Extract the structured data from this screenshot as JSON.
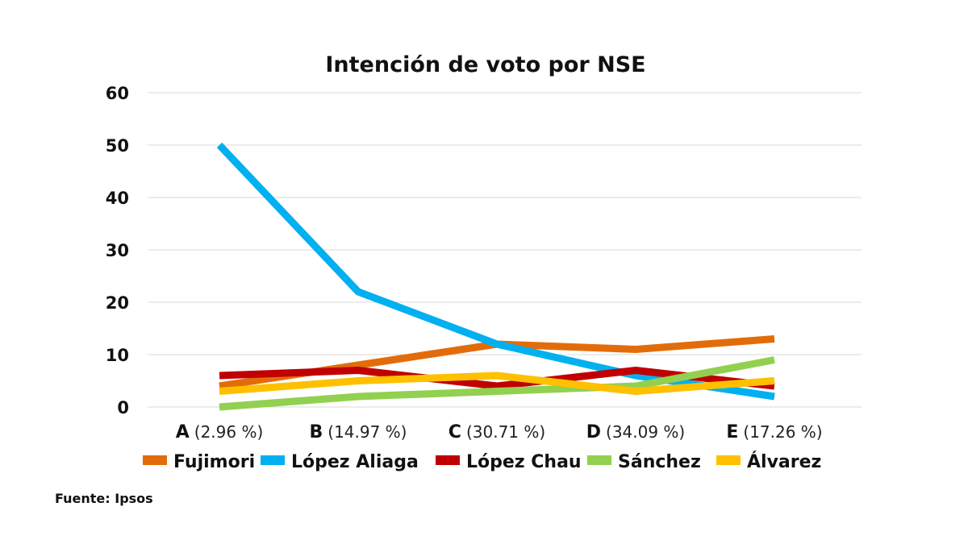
{
  "chart_data": {
    "type": "line",
    "title": "Intención de voto por NSE",
    "categories": [
      {
        "code": "A",
        "share": "(2.96 %)"
      },
      {
        "code": "B",
        "share": "(14.97 %)"
      },
      {
        "code": "C",
        "share": "(30.71 %)"
      },
      {
        "code": "D",
        "share": "(34.09 %)"
      },
      {
        "code": "E",
        "share": "(17.26 %)"
      }
    ],
    "ylim": [
      0,
      60
    ],
    "yticks": [
      "0",
      "10",
      "20",
      "30",
      "40",
      "50",
      "60"
    ],
    "grid": true,
    "legend_position": "bottom",
    "series": [
      {
        "name": "Fujimori",
        "color": "#E36C0A",
        "values": [
          4,
          8,
          12,
          11,
          13
        ]
      },
      {
        "name": "López Aliaga",
        "color": "#00B0F0",
        "values": [
          50,
          22,
          12,
          6,
          2
        ]
      },
      {
        "name": "López Chau",
        "color": "#C00000",
        "values": [
          6,
          7,
          4,
          7,
          4
        ]
      },
      {
        "name": "Sánchez",
        "color": "#92D050",
        "values": [
          0,
          2,
          3,
          4,
          9
        ]
      },
      {
        "name": "Álvarez",
        "color": "#FFC000",
        "values": [
          3,
          5,
          6,
          3,
          5
        ]
      }
    ]
  },
  "source": "Fuente: Ipsos"
}
